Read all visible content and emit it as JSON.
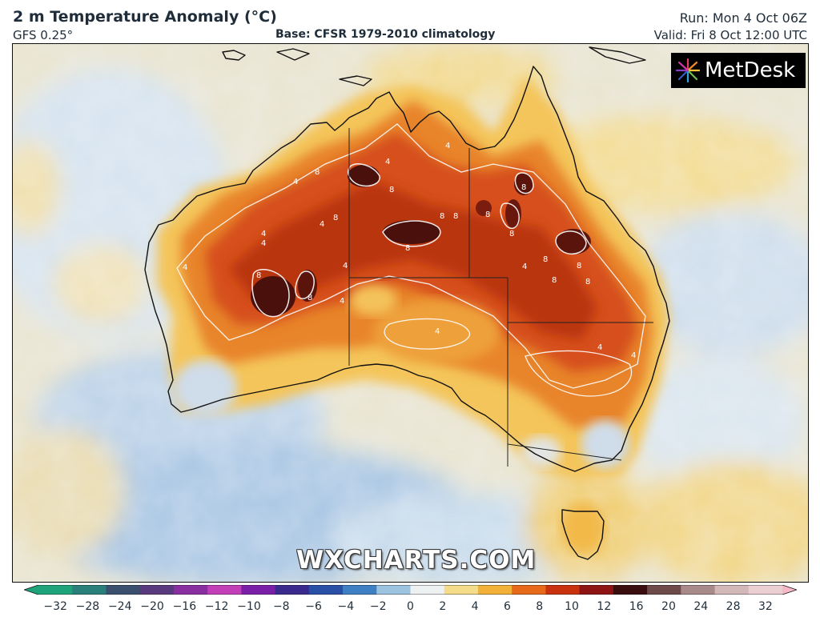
{
  "header": {
    "title": "2 m Temperature Anomaly (°C)",
    "model": "GFS 0.25°",
    "base": "Base: CFSR 1979-2010 climatology",
    "run": "Run: Mon 4 Oct 06Z",
    "valid": "Valid: Fri 8 Oct 12:00 UTC"
  },
  "logo": {
    "text": "MetDesk",
    "icon": "metdesk-star-icon"
  },
  "watermark": "WXCHARTS.COM",
  "colorbar": {
    "ticks": [
      "−32",
      "−28",
      "−24",
      "−20",
      "−16",
      "−12",
      "−10",
      "−8",
      "−6",
      "−4",
      "−2",
      "0",
      "2",
      "4",
      "6",
      "8",
      "10",
      "12",
      "16",
      "20",
      "24",
      "28",
      "32"
    ],
    "colors": [
      "#1fa37a",
      "#2a7f7a",
      "#3b4f6e",
      "#5a3a7e",
      "#8a2fa0",
      "#c23fb8",
      "#7a1fa8",
      "#3a2a8e",
      "#2a4fa6",
      "#3f7fc4",
      "#9cc4e0",
      "#eef1f2",
      "#f4dc8a",
      "#f2b23a",
      "#e66a1a",
      "#c8320e",
      "#8e1414",
      "#3a0e0e",
      "#6e4a4a",
      "#a88a8a",
      "#d2b8b8",
      "#eccfd2",
      "#f7b8c8"
    ]
  },
  "contour_labels": [
    "8",
    "8",
    "8",
    "8",
    "8",
    "8",
    "8",
    "8",
    "8",
    "8",
    "8",
    "8",
    "8",
    "8",
    "8",
    "4",
    "4",
    "4",
    "4",
    "4",
    "4",
    "4",
    "4",
    "4",
    "4",
    "4",
    "4",
    "4"
  ],
  "colors": {
    "ocean_cold": "#b9cfe6",
    "ocean_cool": "#dde8f1",
    "neutral": "#f3ecd6",
    "warm_yellow": "#f6dc86",
    "orange": "#f0a23c",
    "red_orange": "#e2581a",
    "dark_red": "#b12a10",
    "very_dark": "#3b0d0b"
  }
}
